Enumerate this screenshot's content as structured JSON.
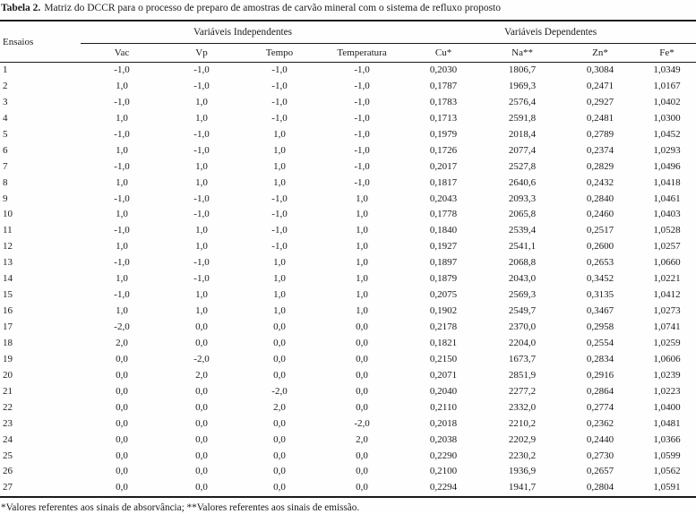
{
  "page": {
    "title_label": "Tabela 2.",
    "title_text": "Matriz do DCCR para o processo de preparo de amostras de carvão mineral com o sistema de refluxo proposto",
    "footnote": "*Valores referentes aos sinais de absorvância; **Valores referentes aos sinais de emissão."
  },
  "table": {
    "row_header": "Ensaios",
    "groups": {
      "independent": "Variáveis Independentes",
      "dependent": "Variáveis Dependentes"
    },
    "columns": [
      "Vac",
      "Vp",
      "Tempo",
      "Temperatura",
      "Cu*",
      "Na**",
      "Zn*",
      "Fe*"
    ],
    "rows": [
      [
        "1",
        "-1,0",
        "-1,0",
        "-1,0",
        "-1,0",
        "0,2030",
        "1806,7",
        "0,3084",
        "1,0349"
      ],
      [
        "2",
        "1,0",
        "-1,0",
        "-1,0",
        "-1,0",
        "0,1787",
        "1969,3",
        "0,2471",
        "1,0167"
      ],
      [
        "3",
        "-1,0",
        "1,0",
        "-1,0",
        "-1,0",
        "0,1783",
        "2576,4",
        "0,2927",
        "1,0402"
      ],
      [
        "4",
        "1,0",
        "1,0",
        "-1,0",
        "-1,0",
        "0,1713",
        "2591,8",
        "0,2481",
        "1,0300"
      ],
      [
        "5",
        "-1,0",
        "-1,0",
        "1,0",
        "-1,0",
        "0,1979",
        "2018,4",
        "0,2789",
        "1,0452"
      ],
      [
        "6",
        "1,0",
        "-1,0",
        "1,0",
        "-1,0",
        "0,1726",
        "2077,4",
        "0,2374",
        "1,0293"
      ],
      [
        "7",
        "-1,0",
        "1,0",
        "1,0",
        "-1,0",
        "0,2017",
        "2527,8",
        "0,2829",
        "1,0496"
      ],
      [
        "8",
        "1,0",
        "1,0",
        "1,0",
        "-1,0",
        "0,1817",
        "2640,6",
        "0,2432",
        "1,0418"
      ],
      [
        "9",
        "-1,0",
        "-1,0",
        "-1,0",
        "1,0",
        "0,2043",
        "2093,3",
        "0,2840",
        "1,0461"
      ],
      [
        "10",
        "1,0",
        "-1,0",
        "-1,0",
        "1,0",
        "0,1778",
        "2065,8",
        "0,2460",
        "1,0403"
      ],
      [
        "11",
        "-1,0",
        "1,0",
        "-1,0",
        "1,0",
        "0,1840",
        "2539,4",
        "0,2517",
        "1,0528"
      ],
      [
        "12",
        "1,0",
        "1,0",
        "-1,0",
        "1,0",
        "0,1927",
        "2541,1",
        "0,2600",
        "1,0257"
      ],
      [
        "13",
        "-1,0",
        "-1,0",
        "1,0",
        "1,0",
        "0,1897",
        "2068,8",
        "0,2653",
        "1,0660"
      ],
      [
        "14",
        "1,0",
        "-1,0",
        "1,0",
        "1,0",
        "0,1879",
        "2043,0",
        "0,3452",
        "1,0221"
      ],
      [
        "15",
        "-1,0",
        "1,0",
        "1,0",
        "1,0",
        "0,2075",
        "2569,3",
        "0,3135",
        "1,0412"
      ],
      [
        "16",
        "1,0",
        "1,0",
        "1,0",
        "1,0",
        "0,1902",
        "2549,7",
        "0,3467",
        "1,0273"
      ],
      [
        "17",
        "-2,0",
        "0,0",
        "0,0",
        "0,0",
        "0,2178",
        "2370,0",
        "0,2958",
        "1,0741"
      ],
      [
        "18",
        "2,0",
        "0,0",
        "0,0",
        "0,0",
        "0,1821",
        "2204,0",
        "0,2554",
        "1,0259"
      ],
      [
        "19",
        "0,0",
        "-2,0",
        "0,0",
        "0,0",
        "0,2150",
        "1673,7",
        "0,2834",
        "1,0606"
      ],
      [
        "20",
        "0,0",
        "2,0",
        "0,0",
        "0,0",
        "0,2071",
        "2851,9",
        "0,2916",
        "1,0239"
      ],
      [
        "21",
        "0,0",
        "0,0",
        "-2,0",
        "0,0",
        "0,2040",
        "2277,2",
        "0,2864",
        "1,0223"
      ],
      [
        "22",
        "0,0",
        "0,0",
        "2,0",
        "0,0",
        "0,2110",
        "2332,0",
        "0,2774",
        "1,0400"
      ],
      [
        "23",
        "0,0",
        "0,0",
        "0,0",
        "-2,0",
        "0,2018",
        "2210,2",
        "0,2362",
        "1,0481"
      ],
      [
        "24",
        "0,0",
        "0,0",
        "0,0",
        "2,0",
        "0,2038",
        "2202,9",
        "0,2440",
        "1,0366"
      ],
      [
        "25",
        "0,0",
        "0,0",
        "0,0",
        "0,0",
        "0,2290",
        "2230,2",
        "0,2730",
        "1,0599"
      ],
      [
        "26",
        "0,0",
        "0,0",
        "0,0",
        "0,0",
        "0,2100",
        "1936,9",
        "0,2657",
        "1,0562"
      ],
      [
        "27",
        "0,0",
        "0,0",
        "0,0",
        "0,0",
        "0,2294",
        "1941,7",
        "0,2804",
        "1,0591"
      ]
    ]
  }
}
